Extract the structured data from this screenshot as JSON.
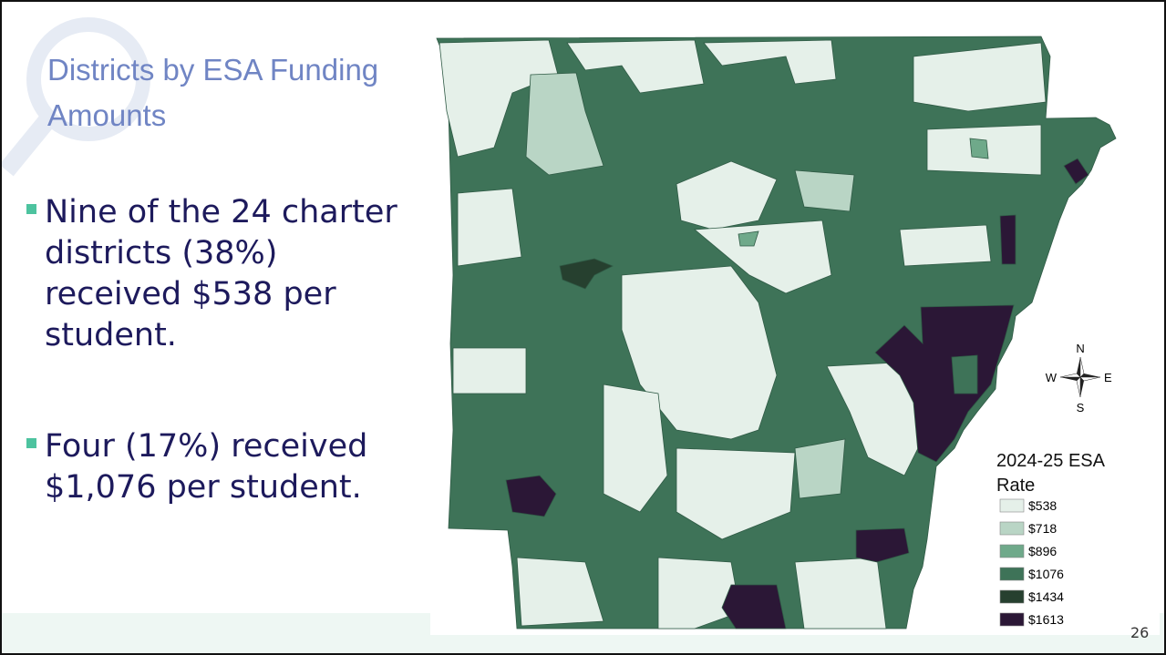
{
  "slide": {
    "title": "Districts by ESA Funding Amounts",
    "bullets": [
      "Nine of the 24 charter districts (38%) received $538 per student.",
      "Four (17%) received $1,076 per student."
    ],
    "page_number": "26"
  },
  "map": {
    "legend": {
      "title": "2024-25 ESA Rate",
      "items": [
        {
          "label": "$538",
          "color": "#e5f0e9"
        },
        {
          "label": "$718",
          "color": "#b9d5c5"
        },
        {
          "label": "$896",
          "color": "#6fa98a"
        },
        {
          "label": "$1076",
          "color": "#3e7358"
        },
        {
          "label": "$1434",
          "color": "#26402f"
        },
        {
          "label": "$1613",
          "color": "#2b1736"
        }
      ]
    },
    "compass": {
      "north": "N",
      "south": "S",
      "east": "E",
      "west": "W"
    }
  }
}
